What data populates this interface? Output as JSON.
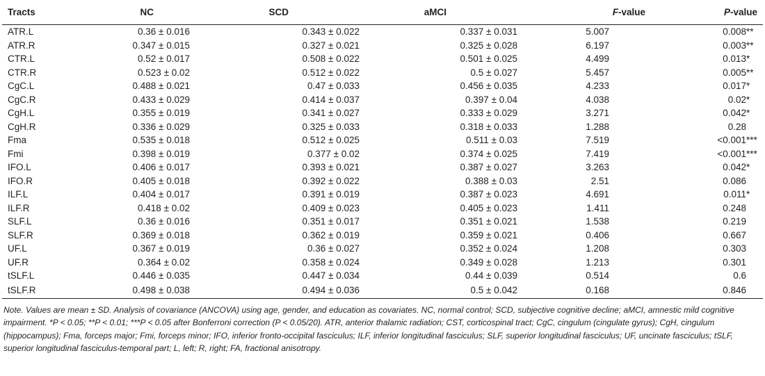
{
  "table": {
    "headers": {
      "tracts": "Tracts",
      "nc": "NC",
      "scd": "SCD",
      "amci": "aMCI",
      "f_letter": "F",
      "f_rest": "-value",
      "p_letter": "P",
      "p_rest": "-value"
    },
    "rows": [
      {
        "tract": "ATR.L",
        "nc": "0.36 ± 0.016",
        "scd": "0.343 ± 0.022",
        "amci": "0.337 ± 0.031",
        "f": "5.007",
        "p": "0.008",
        "sig": "**"
      },
      {
        "tract": "ATR.R",
        "nc": "0.347 ± 0.015",
        "scd": "0.327 ± 0.021",
        "amci": "0.325 ± 0.028",
        "f": "6.197",
        "p": "0.003",
        "sig": "**"
      },
      {
        "tract": "CTR.L",
        "nc": "0.52 ± 0.017",
        "scd": "0.508 ± 0.022",
        "amci": "0.501 ± 0.025",
        "f": "4.499",
        "p": "0.013",
        "sig": "*"
      },
      {
        "tract": "CTR.R",
        "nc": "0.523 ± 0.02",
        "scd": "0.512 ± 0.022",
        "amci": "0.5 ± 0.027",
        "f": "5.457",
        "p": "0.005",
        "sig": "**"
      },
      {
        "tract": "CgC.L",
        "nc": "0.488 ± 0.021",
        "scd": "0.47 ± 0.033",
        "amci": "0.456 ± 0.035",
        "f": "4.233",
        "p": "0.017",
        "sig": "*"
      },
      {
        "tract": "CgC.R",
        "nc": "0.433 ± 0.029",
        "scd": "0.414 ± 0.037",
        "amci": "0.397 ± 0.04",
        "f": "4.038",
        "p": "0.02",
        "sig": "*"
      },
      {
        "tract": "CgH.L",
        "nc": "0.355 ± 0.019",
        "scd": "0.341 ± 0.027",
        "amci": "0.333 ± 0.029",
        "f": "3.271",
        "p": "0.042",
        "sig": "*"
      },
      {
        "tract": "CgH.R",
        "nc": "0.336 ± 0.029",
        "scd": "0.325 ± 0.033",
        "amci": "0.318 ± 0.033",
        "f": "1.288",
        "p": "0.28",
        "sig": ""
      },
      {
        "tract": "Fma",
        "nc": "0.535 ± 0.018",
        "scd": "0.512 ± 0.025",
        "amci": "0.511 ± 0.03",
        "f": "7.519",
        "p": "<0.001",
        "sig": "***"
      },
      {
        "tract": "Fmi",
        "nc": "0.398 ± 0.019",
        "scd": "0.377 ± 0.02",
        "amci": "0.374 ± 0.025",
        "f": "7.419",
        "p": "<0.001",
        "sig": "***"
      },
      {
        "tract": "IFO.L",
        "nc": "0.406 ± 0.017",
        "scd": "0.393 ± 0.021",
        "amci": "0.387 ± 0.027",
        "f": "3.263",
        "p": "0.042",
        "sig": "*"
      },
      {
        "tract": "IFO.R",
        "nc": "0.405 ± 0.018",
        "scd": "0.392 ± 0.022",
        "amci": "0.388 ± 0.03",
        "f": "2.51",
        "p": "0.086",
        "sig": ""
      },
      {
        "tract": "ILF.L",
        "nc": "0.404 ± 0.017",
        "scd": "0.391 ± 0.019",
        "amci": "0.387 ± 0.023",
        "f": "4.691",
        "p": "0.011",
        "sig": "*"
      },
      {
        "tract": "ILF.R",
        "nc": "0.418 ± 0.02",
        "scd": "0.409 ± 0.023",
        "amci": "0.405 ± 0.023",
        "f": "1.411",
        "p": "0.248",
        "sig": ""
      },
      {
        "tract": "SLF.L",
        "nc": "0.36 ± 0.016",
        "scd": "0.351 ± 0.017",
        "amci": "0.351 ± 0.021",
        "f": "1.538",
        "p": "0.219",
        "sig": ""
      },
      {
        "tract": "SLF.R",
        "nc": "0.369 ± 0.018",
        "scd": "0.362 ± 0.019",
        "amci": "0.359 ± 0.021",
        "f": "0.406",
        "p": "0.667",
        "sig": ""
      },
      {
        "tract": "UF.L",
        "nc": "0.367 ± 0.019",
        "scd": "0.36 ± 0.027",
        "amci": "0.352 ± 0.024",
        "f": "1.208",
        "p": "0.303",
        "sig": ""
      },
      {
        "tract": "UF.R",
        "nc": "0.364 ± 0.02",
        "scd": "0.358 ± 0.024",
        "amci": "0.349 ± 0.028",
        "f": "1.213",
        "p": "0.301",
        "sig": ""
      },
      {
        "tract": "tSLF.L",
        "nc": "0.446 ± 0.035",
        "scd": "0.447 ± 0.034",
        "amci": "0.44 ± 0.039",
        "f": "0.514",
        "p": "0.6",
        "sig": ""
      },
      {
        "tract": "tSLF.R",
        "nc": "0.498 ± 0.038",
        "scd": "0.494 ± 0.036",
        "amci": "0.5 ± 0.042",
        "f": "0.168",
        "p": "0.846",
        "sig": ""
      }
    ]
  },
  "note": "Note. Values are mean ± SD. Analysis of covariance (ANCOVA) using age, gender, and education as covariates. NC, normal control; SCD, subjective cognitive decline; aMCI, amnestic mild cognitive impairment. *P < 0.05; **P < 0.01; ***P < 0.05 after Bonferroni correction (P < 0.05/20). ATR, anterior thalamic radiation; CST, corticospinal tract; CgC, cingulum (cingulate gyrus); CgH, cingulum (hippocampus); Fma, forceps major; Fmi, forceps minor; IFO, inferior fronto-occipital fasciculus; ILF, inferior longitudinal fasciculus; SLF, superior longitudinal fasciculus; UF, uncinate fasciculus; tSLF, superior longitudinal fasciculus-temporal part; L, left; R, right; FA, fractional anisotropy."
}
